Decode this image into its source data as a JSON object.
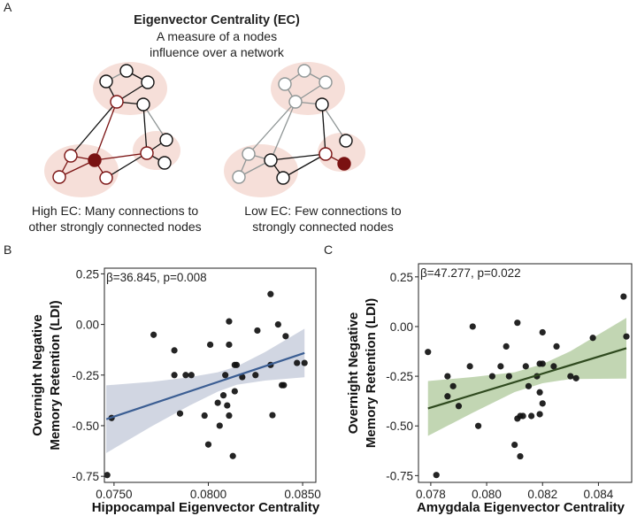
{
  "panel_a": {
    "label": "A",
    "title": "Eigenvector Centrality (EC)",
    "subtitle_line1": "A measure of a nodes",
    "subtitle_line2": "influence over a network",
    "high_caption_line1": "High EC: Many connections to",
    "high_caption_line2": "other strongly connected nodes",
    "low_caption_line1": "Low EC: Few connections to",
    "low_caption_line2": "strongly connected nodes",
    "colors": {
      "highlight": "#7a1212",
      "cluster": "#f6dfd9",
      "muted": "#8f9696"
    }
  },
  "chart_data": [
    {
      "panel_label": "B",
      "type": "scatter",
      "annotation": "β=36.845, p=0.008",
      "xlabel": "Hippocampal Eigenvector Centrality",
      "ylabel_line1": "Overnight Negative",
      "ylabel_line2": "Memory Retention (LDI)",
      "xlim": [
        0.07449,
        0.0857
      ],
      "ylim": [
        -0.78,
        0.278
      ],
      "xticks": [
        0.075,
        0.08,
        0.085
      ],
      "xtick_labels": [
        "0.0750",
        "0.0800",
        "0.0850"
      ],
      "yticks": [
        0.25,
        0.0,
        -0.25,
        -0.5,
        -0.75
      ],
      "ytick_labels": [
        "0.25",
        "0.00",
        "-0.25",
        "-0.50",
        "-0.75"
      ],
      "line_color": "#3b5e93",
      "band_color": "#c9cfdd",
      "points": [
        [
          0.07464,
          -0.744
        ],
        [
          0.07487,
          -0.462
        ],
        [
          0.0771,
          -0.051
        ],
        [
          0.0782,
          -0.128
        ],
        [
          0.0782,
          -0.25
        ],
        [
          0.0788,
          -0.25
        ],
        [
          0.0791,
          -0.25
        ],
        [
          0.0785,
          -0.44
        ],
        [
          0.0798,
          -0.45
        ],
        [
          0.08,
          -0.593
        ],
        [
          0.0801,
          -0.1
        ],
        [
          0.0805,
          -0.387
        ],
        [
          0.0806,
          -0.5
        ],
        [
          0.0808,
          -0.35
        ],
        [
          0.0809,
          -0.25
        ],
        [
          0.081,
          -0.4
        ],
        [
          0.0811,
          0.015
        ],
        [
          0.0811,
          -0.1
        ],
        [
          0.0811,
          -0.45
        ],
        [
          0.0813,
          -0.65
        ],
        [
          0.0814,
          -0.2
        ],
        [
          0.0815,
          -0.2
        ],
        [
          0.0814,
          -0.33
        ],
        [
          0.0818,
          -0.26
        ],
        [
          0.0825,
          -0.25
        ],
        [
          0.0826,
          -0.03
        ],
        [
          0.0833,
          0.15
        ],
        [
          0.0833,
          -0.2
        ],
        [
          0.0834,
          -0.448
        ],
        [
          0.0837,
          0.0
        ],
        [
          0.0839,
          -0.3
        ],
        [
          0.084,
          -0.3
        ],
        [
          0.0841,
          -0.058
        ],
        [
          0.0847,
          -0.19
        ],
        [
          0.0851,
          -0.19
        ]
      ],
      "fit": {
        "x": [
          0.07459,
          0.077,
          0.079,
          0.0805,
          0.0815,
          0.083,
          0.0851
        ],
        "y": [
          -0.468,
          -0.393,
          -0.331,
          -0.284,
          -0.253,
          -0.207,
          -0.141
        ],
        "ci_halfwidth": [
          0.167,
          0.11,
          0.07,
          0.048,
          0.045,
          0.07,
          0.12
        ]
      }
    },
    {
      "panel_label": "C",
      "type": "scatter",
      "annotation": "β=47.277, p=0.022",
      "xlabel": "Amygdala Eigenvector Centrality",
      "ylabel_line1": "Overnight Negative",
      "ylabel_line2": "Memory Retention (LDI)",
      "xlim": [
        0.07756,
        0.08519
      ],
      "ylim": [
        -0.784,
        0.316
      ],
      "xticks": [
        0.078,
        0.08,
        0.082,
        0.084
      ],
      "xtick_labels": [
        "0.078",
        "0.080",
        "0.082",
        "0.084"
      ],
      "yticks": [
        0.25,
        0.0,
        -0.25,
        -0.5,
        -0.75
      ],
      "ytick_labels": [
        "0.25",
        "0.00",
        "-0.25",
        "-0.50",
        "-0.75"
      ],
      "line_color": "#2f4a1f",
      "band_color": "#b7cfa6",
      "points": [
        [
          0.0779,
          -0.128
        ],
        [
          0.0782,
          -0.747
        ],
        [
          0.0786,
          -0.25
        ],
        [
          0.0786,
          -0.351
        ],
        [
          0.0788,
          -0.3
        ],
        [
          0.079,
          -0.4
        ],
        [
          0.0794,
          -0.2
        ],
        [
          0.0795,
          0.0
        ],
        [
          0.0797,
          -0.5
        ],
        [
          0.0802,
          -0.25
        ],
        [
          0.0805,
          -0.2
        ],
        [
          0.0807,
          -0.1
        ],
        [
          0.0808,
          -0.25
        ],
        [
          0.081,
          -0.595
        ],
        [
          0.0811,
          0.019
        ],
        [
          0.0811,
          -0.463
        ],
        [
          0.0812,
          -0.45
        ],
        [
          0.0813,
          -0.45
        ],
        [
          0.0812,
          -0.653
        ],
        [
          0.0814,
          -0.2
        ],
        [
          0.0815,
          -0.3
        ],
        [
          0.0816,
          -0.45
        ],
        [
          0.0818,
          -0.25
        ],
        [
          0.0819,
          -0.441
        ],
        [
          0.0819,
          -0.187
        ],
        [
          0.082,
          -0.187
        ],
        [
          0.0819,
          -0.331
        ],
        [
          0.082,
          -0.387
        ],
        [
          0.082,
          -0.029
        ],
        [
          0.0824,
          -0.2
        ],
        [
          0.0825,
          -0.1
        ],
        [
          0.083,
          -0.25
        ],
        [
          0.0832,
          -0.26
        ],
        [
          0.0838,
          -0.057
        ],
        [
          0.0849,
          0.151
        ],
        [
          0.085,
          -0.05
        ]
      ],
      "fit": {
        "x": [
          0.0779,
          0.0795,
          0.081,
          0.082,
          0.083,
          0.085
        ],
        "y": [
          -0.412,
          -0.344,
          -0.28,
          -0.237,
          -0.194,
          -0.109
        ],
        "ci_halfwidth": [
          0.138,
          0.09,
          0.05,
          0.048,
          0.07,
          0.153
        ]
      }
    }
  ]
}
